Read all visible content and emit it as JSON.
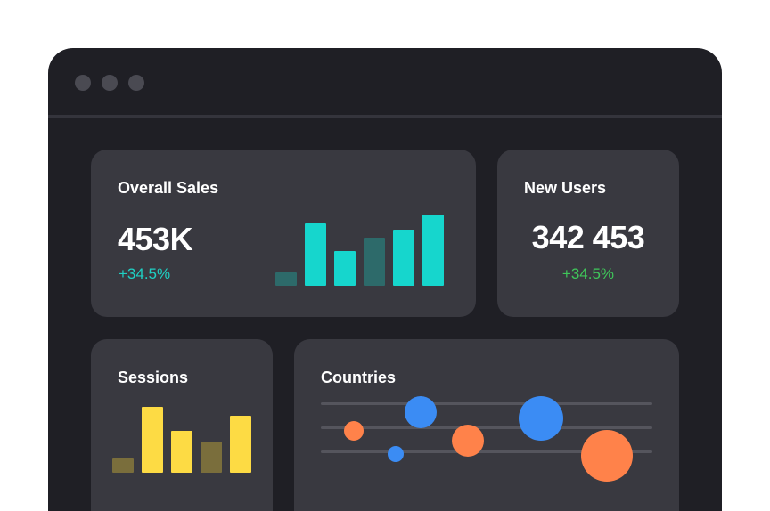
{
  "window": {
    "controls": [
      "close",
      "minimize",
      "maximize"
    ],
    "colors": {
      "background": "#1f1f25",
      "card": "#393940",
      "dot": "#4a4a52"
    }
  },
  "overall_sales": {
    "title": "Overall Sales",
    "value": "453K",
    "change": "+34.5%",
    "change_color": "#1fd0c4",
    "bars": [
      {
        "value": 15,
        "color": "#2d6a6a"
      },
      {
        "value": 70,
        "color": "#16d6cd"
      },
      {
        "value": 39,
        "color": "#16d6cd"
      },
      {
        "value": 54,
        "color": "#2d6a6a"
      },
      {
        "value": 63,
        "color": "#16d6cd"
      },
      {
        "value": 80,
        "color": "#16d6cd"
      }
    ]
  },
  "new_users": {
    "title": "New Users",
    "value": "342 453",
    "change": "+34.5%",
    "change_color": "#3fc75a"
  },
  "sessions": {
    "title": "Sessions",
    "bars": [
      {
        "value": 16,
        "color": "#7a6e3c"
      },
      {
        "value": 74,
        "color": "#fddb44"
      },
      {
        "value": 47,
        "color": "#fddb44"
      },
      {
        "value": 35,
        "color": "#7a6e3c"
      },
      {
        "value": 64,
        "color": "#fddb44"
      }
    ]
  },
  "countries": {
    "title": "Countries",
    "series_colors": {
      "blue": "#3b8cf4",
      "orange": "#ff824a"
    },
    "bubbles": [
      {
        "label": "orange-small",
        "color": "orange",
        "size": 1
      },
      {
        "label": "blue-medium",
        "color": "blue",
        "size": 2
      },
      {
        "label": "blue-small",
        "color": "blue",
        "size": 1
      },
      {
        "label": "orange-medium",
        "color": "orange",
        "size": 2
      },
      {
        "label": "blue-large",
        "color": "blue",
        "size": 3
      },
      {
        "label": "orange-large",
        "color": "orange",
        "size": 3
      }
    ]
  }
}
